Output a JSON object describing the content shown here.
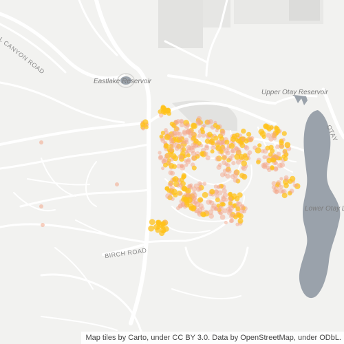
{
  "map": {
    "labels": {
      "eastlake": "Eastlake Reservoir",
      "upper_otay": "Upper Otay Reservoir",
      "lower_otay": "Lower Otay Lake",
      "birch_road": "BIRCH ROAD",
      "canyon_road": "AL CANYON ROAD",
      "otay_road": "OTAY"
    },
    "attribution": "Map tiles by Carto, under CC BY 3.0. Data by OpenStreetMap, under ODbL.",
    "colors": {
      "land": "#f2f2f0",
      "road": "#ffffff",
      "water": "#9aa2ab",
      "urban": "#e4e4e2",
      "point_low": "#f3a78b",
      "point_high": "#ffc21a"
    }
  }
}
